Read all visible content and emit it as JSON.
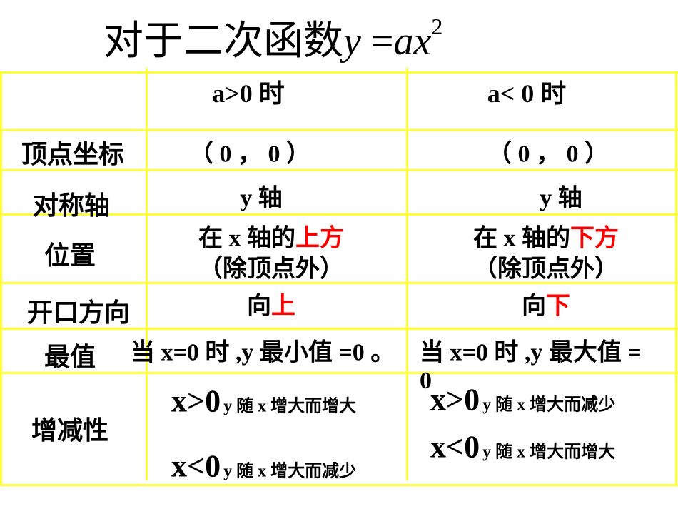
{
  "title": {
    "text": "对于二次函数",
    "formula_lhs": "y",
    "formula_eq": " =",
    "formula_rhs": "ax",
    "formula_exp": "2"
  },
  "table": {
    "columns": [
      "",
      "a>0 时",
      "a< 0 时"
    ],
    "rows": {
      "vertex": {
        "label": "顶点坐标",
        "pos": "（ 0 ，  0 ）",
        "neg": "（ 0 ，  0 ）"
      },
      "axis": {
        "label": "对称轴",
        "pos": "y 轴",
        "neg": "y 轴"
      },
      "position": {
        "label": "位置",
        "pos_prefix": "在 x 轴的",
        "pos_highlight": "上方",
        "neg_prefix": "在 x 轴的",
        "neg_highlight": "下方",
        "note": "（除顶点外）"
      },
      "direction": {
        "label": "开口方向",
        "prefix": "向",
        "pos_highlight": "上",
        "neg_highlight": "下"
      },
      "extreme": {
        "label": "最值",
        "pos": "当 x=0 时 ,y 最小值 =0 。",
        "neg": "当 x=0 时 ,y 最大值 =",
        "neg_wrap": "0"
      },
      "monotonic": {
        "label": "增减性",
        "pos": [
          {
            "cond": "x>0",
            "text": "y  随 x  增大而增大"
          },
          {
            "cond": "x<0",
            "text": "y  随 x  增大而减少"
          }
        ],
        "neg": [
          {
            "cond": "x>0",
            "text": "y  随 x  增大而减少"
          },
          {
            "cond": "x<0",
            "text": "y  随 x  增大而增大"
          }
        ]
      }
    }
  },
  "colors": {
    "grid": "#ffff33",
    "highlight": "#ff0000"
  }
}
